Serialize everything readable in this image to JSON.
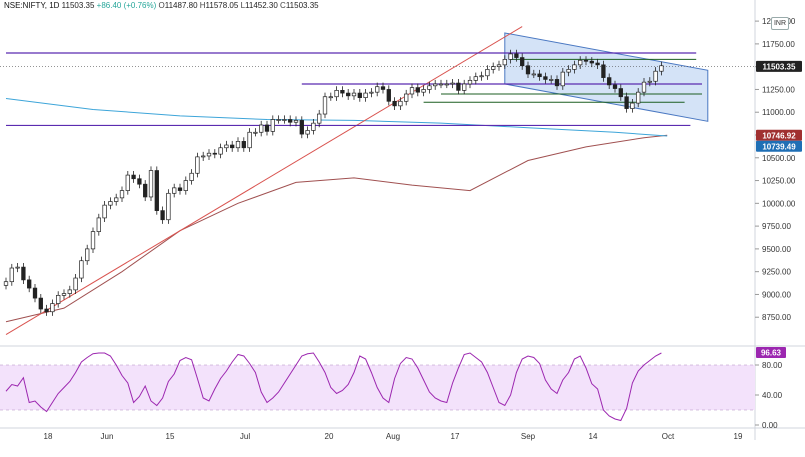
{
  "header": {
    "symbol": "NSE:NIFTY, 1D",
    "last": "11503.35",
    "change": "+86.40 (+0.76%)",
    "open_label": "O",
    "open": "11487.80",
    "high_label": "H",
    "high": "11578.05",
    "low_label": "L",
    "low": "11452.30",
    "close_label": "C",
    "close": "11503.35"
  },
  "currency": "INR",
  "colors": {
    "up": "#26a69a",
    "down": "#ef5350",
    "candle": "#222222",
    "purple": "#5b2bb0",
    "green": "#1b5e20",
    "trend": "#d9534f",
    "ma_red": "#a05050",
    "ma_blue": "#3da5d9",
    "channel_fill": "#c9dcf5",
    "rsi": "#9c27b0",
    "rsi_band": "#f3e2fb",
    "badge_price": "#222222",
    "badge_red": "#a03030",
    "badge_blue": "#1f6fb5"
  },
  "chart_data": {
    "type": "candlestick",
    "y_ticks": [
      8750,
      9000,
      9250,
      9500,
      9750,
      10000,
      10250,
      10500,
      10750,
      11000,
      11250,
      11500,
      11750,
      12000
    ],
    "y_tick_labels": [
      "8750.00",
      "9000.00",
      "9250.00",
      "9500.00",
      "9750.00",
      "10000.00",
      "10250.00",
      "10500.00",
      "10750.00",
      "11000.00",
      "11250.00",
      "11500.00",
      "11750.00",
      "12000.00"
    ],
    "ylim": [
      8500,
      12100
    ],
    "x_labels": [
      "18",
      "Jun",
      "15",
      "Jul",
      "20",
      "Aug",
      "17",
      "Sep",
      "14",
      "Oct",
      "19"
    ],
    "price_badges": [
      {
        "label": "11503.35",
        "value": 11503.35,
        "style": "price"
      },
      {
        "label": "10746.92",
        "value": 10746.92,
        "style": "red"
      },
      {
        "label": "10739.49",
        "value": 10739.49,
        "style": "blue"
      }
    ],
    "closes": [
      9140,
      9290,
      9300,
      9160,
      9070,
      8960,
      8840,
      8810,
      8900,
      8990,
      9010,
      9050,
      9180,
      9370,
      9500,
      9690,
      9840,
      9980,
      10020,
      10060,
      10140,
      10310,
      10270,
      10210,
      10070,
      10360,
      9920,
      9820,
      10110,
      10170,
      10140,
      10250,
      10330,
      10510,
      10520,
      10550,
      10540,
      10610,
      10640,
      10610,
      10680,
      10610,
      10780,
      10780,
      10860,
      10790,
      10920,
      10920,
      10920,
      10890,
      10910,
      10760,
      10800,
      10880,
      10980,
      11170,
      11170,
      11240,
      11210,
      11180,
      11210,
      11160,
      11210,
      11220,
      11280,
      11250,
      11120,
      11070,
      11120,
      11200,
      11270,
      11220,
      11250,
      11290,
      11310,
      11310,
      11310,
      11320,
      11240,
      11310,
      11350,
      11390,
      11400,
      11470,
      11500,
      11520,
      11580,
      11640,
      11600,
      11510,
      11420,
      11420,
      11390,
      11360,
      11360,
      11290,
      11440,
      11470,
      11520,
      11570,
      11560,
      11540,
      11520,
      11380,
      11300,
      11260,
      11170,
      11040,
      11100,
      11220,
      11330,
      11340,
      11450,
      11510
    ],
    "rsi": {
      "ticks": [
        0,
        40,
        80
      ],
      "tick_labels": [
        "0.00",
        "40.00",
        "80.00"
      ],
      "band": [
        20,
        80
      ],
      "current_label": "96.63",
      "current": 96.63,
      "values": [
        45,
        54,
        52,
        63,
        30,
        32,
        24,
        18,
        30,
        42,
        50,
        58,
        70,
        84,
        90,
        95,
        96,
        96,
        92,
        80,
        66,
        56,
        30,
        38,
        52,
        32,
        26,
        36,
        58,
        68,
        86,
        90,
        87,
        62,
        36,
        32,
        48,
        62,
        72,
        84,
        94,
        92,
        82,
        70,
        44,
        30,
        36,
        44,
        56,
        68,
        80,
        92,
        95,
        96,
        84,
        70,
        50,
        42,
        46,
        54,
        70,
        92,
        88,
        70,
        50,
        36,
        30,
        62,
        82,
        90,
        88,
        76,
        60,
        44,
        36,
        32,
        30,
        56,
        76,
        94,
        96,
        90,
        84,
        70,
        50,
        30,
        26,
        40,
        70,
        88,
        92,
        90,
        82,
        60,
        48,
        42,
        60,
        70,
        88,
        92,
        76,
        55,
        48,
        20,
        12,
        8,
        6,
        22,
        56,
        72,
        80,
        86,
        92,
        96
      ]
    },
    "overlays": {
      "sma_red": {
        "values": [
          [
            0,
            8700
          ],
          [
            10,
            8850
          ],
          [
            20,
            9250
          ],
          [
            30,
            9700
          ],
          [
            40,
            10000
          ],
          [
            50,
            10230
          ],
          [
            60,
            10280
          ],
          [
            70,
            10200
          ],
          [
            80,
            10140
          ],
          [
            90,
            10470
          ],
          [
            100,
            10620
          ],
          [
            110,
            10720
          ],
          [
            114,
            10747
          ]
        ]
      },
      "sma_blue": {
        "values": [
          [
            0,
            11150
          ],
          [
            15,
            11030
          ],
          [
            30,
            10960
          ],
          [
            45,
            10920
          ],
          [
            60,
            10910
          ],
          [
            75,
            10880
          ],
          [
            90,
            10830
          ],
          [
            105,
            10780
          ],
          [
            114,
            10739
          ]
        ]
      },
      "trendline": [
        [
          0,
          8560
        ],
        [
          89,
          11940
        ]
      ],
      "resistance_purple": [
        {
          "from": 0,
          "to": 119,
          "value": 11650
        },
        {
          "from": 0,
          "to": 118,
          "value": 10855
        },
        {
          "from": 51,
          "to": 120,
          "value": 11310
        }
      ],
      "green_levels": [
        {
          "from": 87,
          "to": 119,
          "value": 11580
        },
        {
          "from": 75,
          "to": 120,
          "value": 11200
        },
        {
          "from": 72,
          "to": 117,
          "value": 11110
        }
      ],
      "channel": [
        [
          86,
          11870
        ],
        [
          121,
          11460
        ],
        [
          121,
          10900
        ],
        [
          86,
          11310
        ]
      ]
    }
  }
}
